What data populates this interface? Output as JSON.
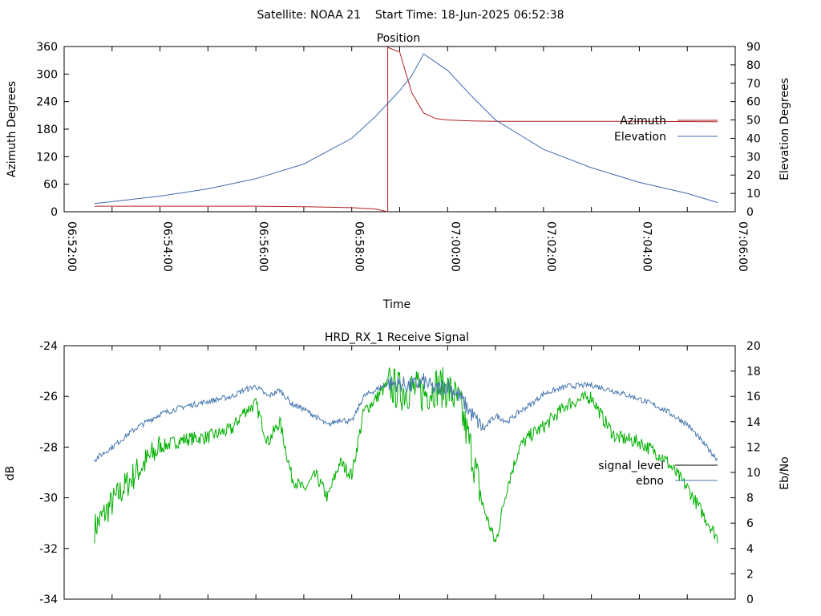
{
  "page_title": "Satellite: NOAA 21    Start Time: 18-Jun-2025 06:52:38",
  "colors": {
    "azimuth": "#b22222",
    "elevation": "#4169b0",
    "signal_level": "#00b000",
    "ebno": "#4a7ab0",
    "legend_signal_sample": "#000000"
  },
  "chart_data": [
    {
      "type": "line",
      "title": "Position",
      "xlabel": "Time",
      "ylabel": "Azimuth Degrees",
      "y2label": "Elevation Degrees",
      "xlim": [
        "06:52:00",
        "07:06:00"
      ],
      "ylim": [
        0,
        360
      ],
      "y2lim": [
        0,
        90
      ],
      "x_ticks": [
        "06:52:00",
        "06:54:00",
        "06:56:00",
        "06:58:00",
        "07:00:00",
        "07:02:00",
        "07:04:00",
        "07:06:00"
      ],
      "y_ticks": [
        "0",
        "60",
        "120",
        "180",
        "240",
        "300",
        "360"
      ],
      "y2_ticks": [
        "0",
        "10",
        "20",
        "30",
        "40",
        "50",
        "60",
        "70",
        "80",
        "90"
      ],
      "legend_position": "right",
      "series": [
        {
          "name": "Azimuth",
          "axis": "left",
          "x": [
            "06:52:38",
            "06:54:00",
            "06:56:00",
            "06:57:00",
            "06:58:00",
            "06:58:30",
            "06:58:45",
            "06:58:45",
            "06:59:00",
            "06:59:15",
            "06:59:30",
            "06:59:45",
            "07:00:00",
            "07:00:30",
            "07:01:00",
            "07:02:00",
            "07:04:00",
            "07:05:38"
          ],
          "values": [
            12,
            12,
            12,
            11,
            9,
            6,
            0,
            358,
            348,
            260,
            215,
            203,
            200,
            198,
            197,
            197,
            197,
            196
          ]
        },
        {
          "name": "Elevation",
          "axis": "right",
          "x": [
            "06:52:38",
            "06:53:00",
            "06:54:00",
            "06:55:00",
            "06:56:00",
            "06:57:00",
            "06:58:00",
            "06:58:30",
            "06:59:00",
            "06:59:15",
            "06:59:30",
            "07:00:00",
            "07:00:30",
            "07:01:00",
            "07:02:00",
            "07:03:00",
            "07:04:00",
            "07:05:00",
            "07:05:38"
          ],
          "values": [
            4.5,
            5.5,
            8.5,
            12.5,
            18,
            26,
            40,
            52,
            66,
            74,
            86,
            77,
            63,
            50,
            34,
            24,
            16,
            10,
            5
          ]
        }
      ]
    },
    {
      "type": "line",
      "title": "HRD_RX_1 Receive Signal",
      "xlabel": "",
      "ylabel": "dB",
      "y2label": "Eb/No",
      "xlim": [
        "06:52:00",
        "07:06:00"
      ],
      "ylim": [
        -34,
        -24
      ],
      "y2lim": [
        0,
        20
      ],
      "y_ticks": [
        "-34",
        "-32",
        "-30",
        "-28",
        "-26",
        "-24"
      ],
      "y2_ticks": [
        "0",
        "2",
        "4",
        "6",
        "8",
        "10",
        "12",
        "14",
        "16",
        "18",
        "20"
      ],
      "legend_position": "right",
      "series": [
        {
          "name": "signal_level",
          "axis": "left",
          "x": [
            "06:52:38",
            "06:53:00",
            "06:53:30",
            "06:54:00",
            "06:54:30",
            "06:55:00",
            "06:55:30",
            "06:55:45",
            "06:56:00",
            "06:56:15",
            "06:56:30",
            "06:56:45",
            "06:57:00",
            "06:57:15",
            "06:57:30",
            "06:57:45",
            "06:58:00",
            "06:58:15",
            "06:58:30",
            "06:58:45",
            "06:59:00",
            "06:59:15",
            "06:59:30",
            "06:59:45",
            "07:00:00",
            "07:00:15",
            "07:00:30",
            "07:00:45",
            "07:01:00",
            "07:01:15",
            "07:01:30",
            "07:01:45",
            "07:02:00",
            "07:02:30",
            "07:03:00",
            "07:03:15",
            "07:03:30",
            "07:04:00",
            "07:04:30",
            "07:05:00",
            "07:05:38"
          ],
          "values": [
            -31.2,
            -30.2,
            -29.0,
            -28.0,
            -27.7,
            -27.6,
            -27.3,
            -26.6,
            -26.3,
            -27.8,
            -27.0,
            -29.2,
            -29.7,
            -29.1,
            -30.0,
            -28.6,
            -29.1,
            -26.6,
            -26.1,
            -25.5,
            -25.8,
            -25.7,
            -25.9,
            -25.6,
            -25.7,
            -26.3,
            -28.2,
            -30.4,
            -31.8,
            -29.5,
            -28.0,
            -27.5,
            -27.2,
            -26.3,
            -26.0,
            -26.9,
            -27.6,
            -27.8,
            -28.4,
            -29.6,
            -31.6
          ]
        },
        {
          "name": "ebno",
          "axis": "right",
          "x": [
            "06:52:38",
            "06:53:00",
            "06:53:30",
            "06:54:00",
            "06:54:30",
            "06:55:00",
            "06:55:30",
            "06:55:45",
            "06:56:00",
            "06:56:15",
            "06:56:30",
            "06:56:45",
            "06:57:00",
            "06:57:15",
            "06:57:30",
            "06:57:45",
            "06:58:00",
            "06:58:15",
            "06:58:30",
            "06:58:45",
            "06:59:00",
            "06:59:15",
            "06:59:30",
            "06:59:45",
            "07:00:00",
            "07:00:15",
            "07:00:30",
            "07:00:45",
            "07:01:00",
            "07:01:15",
            "07:01:30",
            "07:01:45",
            "07:02:00",
            "07:02:30",
            "07:03:00",
            "07:03:30",
            "07:04:00",
            "07:04:30",
            "07:05:00",
            "07:05:38"
          ],
          "values": [
            11.0,
            12.0,
            13.5,
            14.6,
            15.2,
            15.6,
            16.0,
            16.5,
            16.8,
            16.0,
            16.5,
            15.4,
            15.0,
            14.4,
            13.7,
            14.2,
            14.0,
            16.0,
            16.5,
            17.0,
            17.0,
            16.8,
            17.2,
            16.5,
            16.9,
            16.0,
            14.6,
            13.4,
            14.5,
            14.0,
            14.8,
            15.4,
            16.2,
            16.8,
            16.9,
            16.4,
            15.8,
            15.0,
            13.8,
            11.0
          ]
        }
      ]
    }
  ]
}
